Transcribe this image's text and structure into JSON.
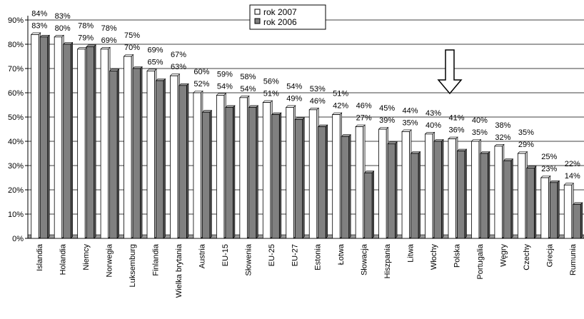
{
  "chart_data": {
    "type": "bar",
    "categories": [
      "Islandia",
      "Holandia",
      "Niemcy",
      "Norwegia",
      "Luksemburg",
      "Finlandia",
      "Wielka brytania",
      "Austria",
      "EU-15",
      "Słowenia",
      "EU-25",
      "EU-27",
      "Estonia",
      "Łotwa",
      "Słowacja",
      "Hiszpania",
      "Litwa",
      "Włochy",
      "Polska",
      "Portugalia",
      "Węgry",
      "Czechy",
      "Grecja",
      "Rumunia"
    ],
    "series": [
      {
        "name": "rok 2007",
        "color": "#ffffff",
        "values": [
          84,
          83,
          78,
          78,
          75,
          69,
          67,
          60,
          59,
          58,
          56,
          54,
          53,
          51,
          46,
          45,
          44,
          43,
          41,
          40,
          38,
          35,
          25,
          22
        ]
      },
      {
        "name": "rok 2006",
        "color": "#808080",
        "values": [
          83,
          80,
          79,
          69,
          70,
          65,
          63,
          52,
          54,
          54,
          51,
          49,
          46,
          42,
          27,
          39,
          35,
          40,
          36,
          35,
          32,
          29,
          23,
          14
        ]
      }
    ],
    "data_labels": {
      "rok 2007": [
        "84%",
        "83%",
        "78%",
        "78%",
        "75%",
        "69%",
        "67%",
        "60%",
        "59%",
        "58%",
        "56%",
        "54%",
        "53%",
        "51%",
        "46%",
        "45%",
        "44%",
        "43%",
        "41%",
        "40%",
        "38%",
        "35%",
        "25%",
        "22%"
      ],
      "rok 2006": [
        "83%",
        "80%",
        "79%",
        "69%",
        "70%",
        "65%",
        "63%",
        "52%",
        "54%",
        "54%",
        "51%",
        "49%",
        "46%",
        "42%",
        "27%",
        "39%",
        "35%",
        "40%",
        "36%",
        "35%",
        "32%",
        "29%",
        "23%",
        "14%"
      ]
    },
    "y_ticks": [
      "0%",
      "10%",
      "20%",
      "30%",
      "40%",
      "50%",
      "60%",
      "70%",
      "80%",
      "90%"
    ],
    "ylim": [
      0,
      90
    ],
    "title": "",
    "xlabel": "",
    "ylabel": "",
    "grid": true,
    "legend_position": "top-center",
    "highlight_arrow_category": "Polska",
    "colors": {
      "bar_2007": "#ffffff",
      "bar_2006": "#808080",
      "grid": "#000000",
      "axis": "#000000",
      "floor": "#9a9a9a"
    }
  }
}
